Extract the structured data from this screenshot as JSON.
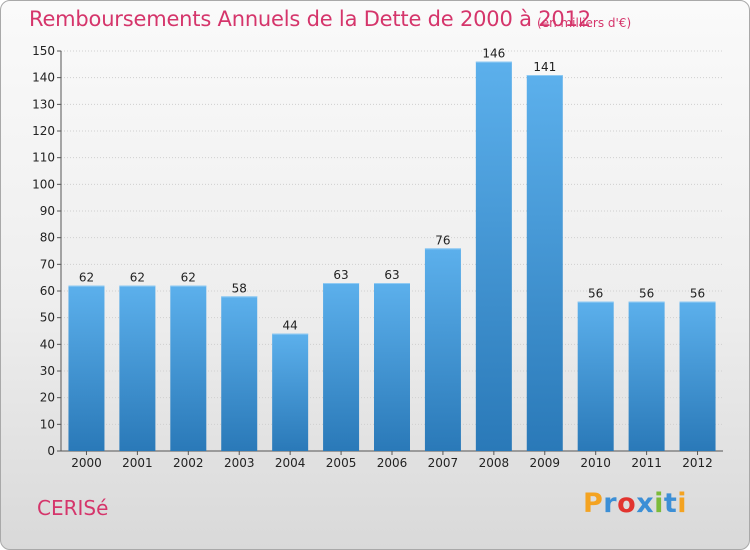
{
  "header": {
    "title": "Remboursements Annuels de la Dette de 2000 à 2012",
    "unit": "(en milliers d'€)"
  },
  "footer": {
    "commune": "CERISé",
    "logo_text": "Proxiti"
  },
  "colors": {
    "accent": "#d5356b",
    "bar_top": "#5cb0ec",
    "bar_bottom": "#2a79b8"
  },
  "chart_data": {
    "type": "bar",
    "title": "Remboursements Annuels de la Dette de 2000 à 2012",
    "subtitle": "(en milliers d'€)",
    "xlabel": "",
    "ylabel": "",
    "categories": [
      "2000",
      "2001",
      "2002",
      "2003",
      "2004",
      "2005",
      "2006",
      "2007",
      "2008",
      "2009",
      "2010",
      "2011",
      "2012"
    ],
    "values": [
      62,
      62,
      62,
      58,
      44,
      63,
      63,
      76,
      146,
      141,
      56,
      56,
      56
    ],
    "ylim": [
      0,
      150
    ],
    "y_ticks": [
      0,
      10,
      20,
      30,
      40,
      50,
      60,
      70,
      80,
      90,
      100,
      110,
      120,
      130,
      140,
      150
    ],
    "grid": true,
    "legend": "none"
  }
}
